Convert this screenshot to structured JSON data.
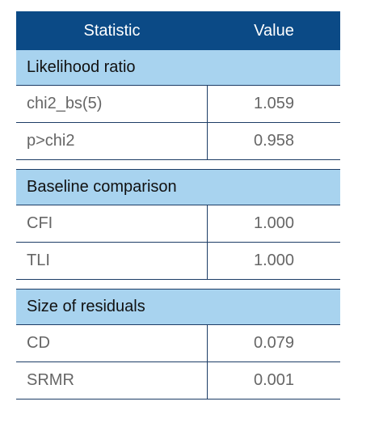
{
  "header": {
    "statistic_label": "Statistic",
    "value_label": "Value"
  },
  "sections": [
    {
      "title": "Likelihood ratio",
      "rows": [
        {
          "statistic": "chi2_bs(5)",
          "value": "1.059"
        },
        {
          "statistic": "p>chi2",
          "value": "0.958"
        }
      ]
    },
    {
      "title": "Baseline comparison",
      "rows": [
        {
          "statistic": "CFI",
          "value": "1.000"
        },
        {
          "statistic": "TLI",
          "value": "1.000"
        }
      ]
    },
    {
      "title": "Size of residuals",
      "rows": [
        {
          "statistic": "CD",
          "value": "0.079"
        },
        {
          "statistic": "SRMR",
          "value": "0.001"
        }
      ]
    }
  ],
  "colors": {
    "header_bg": "#0b4a86",
    "section_bg": "#a8d3ef",
    "rule": "#1d3d66"
  }
}
